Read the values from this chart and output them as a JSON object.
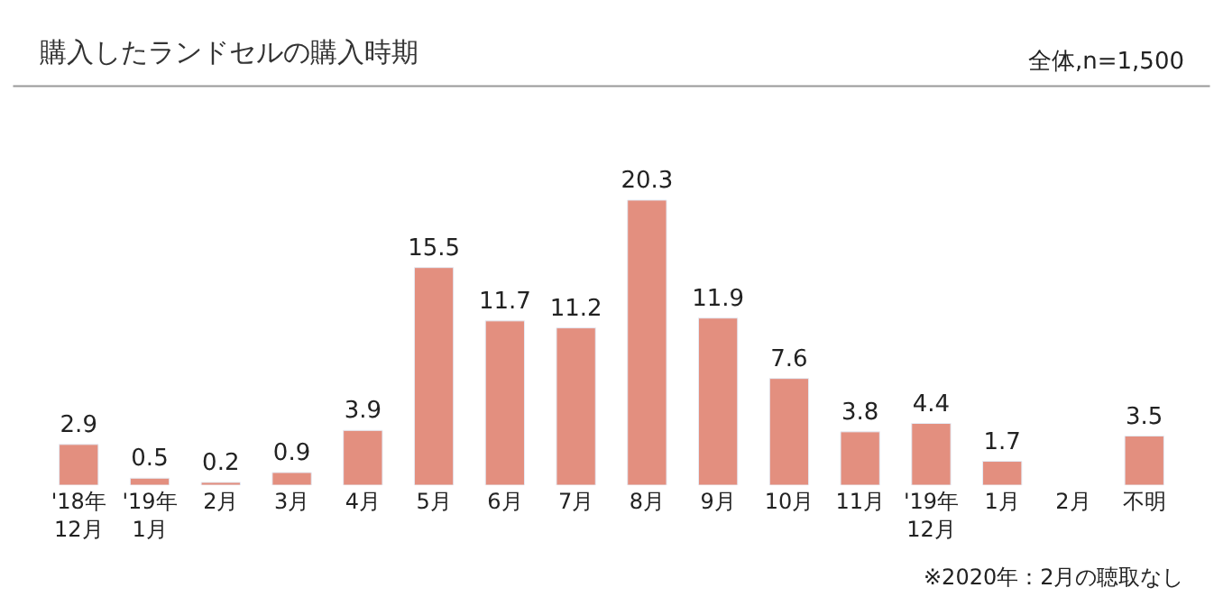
{
  "chart_data": {
    "type": "bar",
    "title": "購入したランドセルの購入時期",
    "subtitle": "全体,n=1,500",
    "categories": [
      "'18年\n12月",
      "'19年\n1月",
      "2月",
      "3月",
      "4月",
      "5月",
      "6月",
      "7月",
      "8月",
      "9月",
      "10月",
      "11月",
      "'19年\n12月",
      "1月",
      "2月",
      "不明"
    ],
    "values": [
      2.9,
      0.5,
      0.2,
      0.9,
      3.9,
      15.5,
      11.7,
      11.2,
      20.3,
      11.9,
      7.6,
      3.8,
      4.4,
      1.7,
      null,
      3.5
    ],
    "color": "#e38f7f",
    "data_labels": true,
    "legend": false,
    "annotations": [
      "※2020年：2月の聴取なし"
    ]
  }
}
